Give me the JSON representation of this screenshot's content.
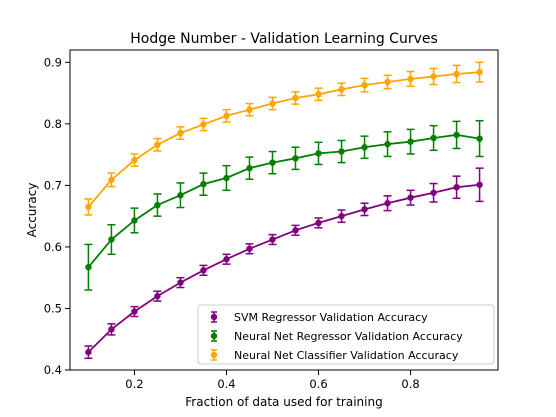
{
  "chart_data": {
    "type": "line",
    "title": "Hodge Number - Validation Learning Curves",
    "xlabel": "Fraction of data used for training",
    "ylabel": "Accuracy",
    "xlim": [
      0.06,
      0.99
    ],
    "ylim": [
      0.4,
      0.92
    ],
    "xticks": [
      0.2,
      0.4,
      0.6,
      0.8
    ],
    "xtick_labels": [
      "0.2",
      "0.4",
      "0.6",
      "0.8"
    ],
    "yticks": [
      0.4,
      0.5,
      0.6,
      0.7,
      0.8,
      0.9
    ],
    "ytick_labels": [
      "0.4",
      "0.5",
      "0.6",
      "0.7",
      "0.8",
      "0.9"
    ],
    "grid": false,
    "legend_position": "lower-right",
    "x": [
      0.1,
      0.15,
      0.2,
      0.25,
      0.3,
      0.35,
      0.4,
      0.45,
      0.5,
      0.55,
      0.6,
      0.65,
      0.7,
      0.75,
      0.8,
      0.85,
      0.9,
      0.95
    ],
    "series": [
      {
        "name": "SVM Regressor Validation Accuracy",
        "color": "#800080",
        "values": [
          0.429,
          0.466,
          0.495,
          0.52,
          0.542,
          0.562,
          0.58,
          0.597,
          0.612,
          0.627,
          0.639,
          0.65,
          0.661,
          0.671,
          0.68,
          0.688,
          0.697,
          0.701
        ],
        "errors": [
          0.01,
          0.009,
          0.008,
          0.008,
          0.008,
          0.008,
          0.008,
          0.008,
          0.008,
          0.008,
          0.008,
          0.01,
          0.01,
          0.012,
          0.012,
          0.015,
          0.018,
          0.027
        ]
      },
      {
        "name": "Neural Net Regressor Validation Accuracy",
        "color": "#008000",
        "values": [
          0.567,
          0.612,
          0.643,
          0.668,
          0.684,
          0.702,
          0.712,
          0.728,
          0.737,
          0.744,
          0.752,
          0.755,
          0.762,
          0.767,
          0.771,
          0.777,
          0.782,
          0.776
        ],
        "errors": [
          0.037,
          0.024,
          0.02,
          0.018,
          0.02,
          0.018,
          0.02,
          0.018,
          0.018,
          0.018,
          0.018,
          0.018,
          0.018,
          0.02,
          0.02,
          0.02,
          0.022,
          0.029
        ]
      },
      {
        "name": "Neural Net Classifier Validation Accuracy",
        "color": "#FFA500",
        "values": [
          0.665,
          0.709,
          0.741,
          0.766,
          0.785,
          0.799,
          0.813,
          0.823,
          0.833,
          0.842,
          0.848,
          0.856,
          0.863,
          0.868,
          0.873,
          0.877,
          0.881,
          0.884
        ],
        "errors": [
          0.013,
          0.011,
          0.01,
          0.01,
          0.01,
          0.01,
          0.01,
          0.01,
          0.01,
          0.01,
          0.01,
          0.01,
          0.011,
          0.011,
          0.012,
          0.013,
          0.014,
          0.016
        ]
      }
    ]
  }
}
